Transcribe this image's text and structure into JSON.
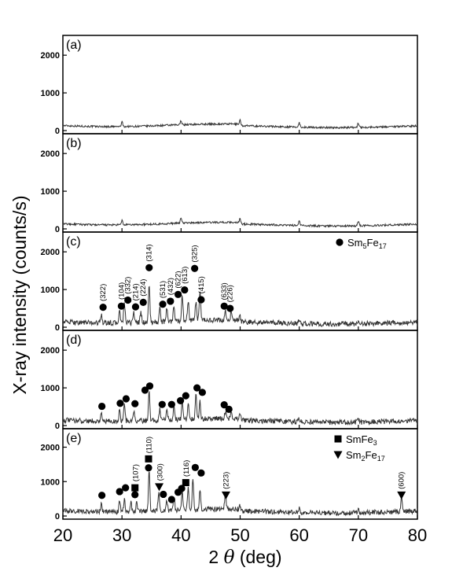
{
  "chart_data": {
    "type": "line",
    "xlabel": "2 θ (deg)",
    "xlabel_theta": "θ",
    "xlabel_prefix": "2 ",
    "xlabel_suffix": " (deg)",
    "ylabel": "X-ray intensity (counts/s)",
    "xlim": [
      20,
      80
    ],
    "xticks": [
      20,
      30,
      40,
      50,
      60,
      70,
      80
    ],
    "ylim": [
      0,
      2400
    ],
    "yticks": [
      0,
      1000,
      2000
    ],
    "panels": [
      {
        "label": "(a)",
        "baseline": 140,
        "peaks": [
          [
            30,
            120
          ],
          [
            40,
            120
          ],
          [
            50,
            120
          ],
          [
            60,
            120
          ],
          [
            70,
            120
          ]
        ],
        "markers": [],
        "labels": []
      },
      {
        "label": "(b)",
        "baseline": 140,
        "peaks": [
          [
            30,
            120
          ],
          [
            40,
            150
          ],
          [
            50,
            120
          ],
          [
            60,
            120
          ],
          [
            70,
            120
          ]
        ],
        "markers": [],
        "labels": []
      },
      {
        "label": "(c)",
        "baseline": 150,
        "peaks": [
          [
            26.5,
            250
          ],
          [
            29.6,
            320
          ],
          [
            30.4,
            550
          ],
          [
            32,
            300
          ],
          [
            33.2,
            280
          ],
          [
            34.6,
            1000
          ],
          [
            36.4,
            350
          ],
          [
            37.6,
            380
          ],
          [
            38.8,
            420
          ],
          [
            40.2,
            700
          ],
          [
            41.2,
            550
          ],
          [
            42.5,
            500
          ],
          [
            43.2,
            780
          ],
          [
            47.5,
            250
          ],
          [
            48.5,
            220
          ],
          [
            50,
            120
          ],
          [
            60,
            100
          ],
          [
            70,
            100
          ]
        ],
        "markers": [
          {
            "shape": "circle",
            "x": 26.8,
            "y": 530
          },
          {
            "shape": "circle",
            "x": 29.9,
            "y": 560
          },
          {
            "shape": "circle",
            "x": 31,
            "y": 720
          },
          {
            "shape": "circle",
            "x": 32.3,
            "y": 540
          },
          {
            "shape": "circle",
            "x": 33.6,
            "y": 660
          },
          {
            "shape": "circle",
            "x": 34.6,
            "y": 1580
          },
          {
            "shape": "circle",
            "x": 36.9,
            "y": 610
          },
          {
            "shape": "circle",
            "x": 38.2,
            "y": 690
          },
          {
            "shape": "circle",
            "x": 39.5,
            "y": 870
          },
          {
            "shape": "circle",
            "x": 40.6,
            "y": 990
          },
          {
            "shape": "circle",
            "x": 42.3,
            "y": 1560
          },
          {
            "shape": "circle",
            "x": 43.4,
            "y": 730
          },
          {
            "shape": "circle",
            "x": 47.3,
            "y": 560
          },
          {
            "shape": "circle",
            "x": 48.3,
            "y": 500
          }
        ],
        "labels": [
          {
            "text": "(322)",
            "x": 26.8,
            "y": 690
          },
          {
            "text": "(104)",
            "x": 29.9,
            "y": 730
          },
          {
            "text": "(332)",
            "x": 31,
            "y": 880
          },
          {
            "text": "(214)",
            "x": 32.3,
            "y": 700
          },
          {
            "text": "(224)",
            "x": 33.6,
            "y": 820
          },
          {
            "text": "(314)",
            "x": 34.6,
            "y": 1740
          },
          {
            "text": "(531)",
            "x": 36.9,
            "y": 770
          },
          {
            "text": "(432)",
            "x": 38.2,
            "y": 850
          },
          {
            "text": "(622)",
            "x": 39.5,
            "y": 1030
          },
          {
            "text": "(613)",
            "x": 40.6,
            "y": 1150
          },
          {
            "text": "(325)",
            "x": 42.3,
            "y": 1720
          },
          {
            "text": "(415)",
            "x": 43.4,
            "y": 890
          },
          {
            "text": "(633)",
            "x": 47.3,
            "y": 720
          },
          {
            "text": "(226)",
            "x": 48.3,
            "y": 660
          }
        ],
        "legend": [
          {
            "shape": "circle",
            "text": "Sm",
            "sub": "5",
            "text2": "Fe",
            "sub2": "17"
          }
        ]
      },
      {
        "label": "(d)",
        "baseline": 150,
        "peaks": [
          [
            26.5,
            220
          ],
          [
            29.6,
            300
          ],
          [
            30.4,
            450
          ],
          [
            32,
            250
          ],
          [
            34.6,
            800
          ],
          [
            36.4,
            300
          ],
          [
            37.6,
            320
          ],
          [
            38.8,
            350
          ],
          [
            40.2,
            500
          ],
          [
            41.2,
            420
          ],
          [
            42.5,
            650
          ],
          [
            43.2,
            450
          ],
          [
            47.5,
            200
          ],
          [
            48.5,
            180
          ],
          [
            50,
            120
          ],
          [
            60,
            100
          ],
          [
            70,
            100
          ]
        ],
        "markers": [
          {
            "shape": "circle",
            "x": 26.6,
            "y": 510
          },
          {
            "shape": "circle",
            "x": 29.7,
            "y": 590
          },
          {
            "shape": "circle",
            "x": 30.7,
            "y": 710
          },
          {
            "shape": "circle",
            "x": 32.2,
            "y": 580
          },
          {
            "shape": "circle",
            "x": 33.9,
            "y": 940
          },
          {
            "shape": "circle",
            "x": 34.7,
            "y": 1050
          },
          {
            "shape": "circle",
            "x": 36.8,
            "y": 560
          },
          {
            "shape": "circle",
            "x": 38.4,
            "y": 560
          },
          {
            "shape": "circle",
            "x": 39.9,
            "y": 660
          },
          {
            "shape": "circle",
            "x": 40.8,
            "y": 790
          },
          {
            "shape": "circle",
            "x": 42.7,
            "y": 1000
          },
          {
            "shape": "circle",
            "x": 43.6,
            "y": 880
          },
          {
            "shape": "circle",
            "x": 47.3,
            "y": 550
          },
          {
            "shape": "circle",
            "x": 48.1,
            "y": 430
          }
        ],
        "labels": []
      },
      {
        "label": "(e)",
        "baseline": 160,
        "peaks": [
          [
            26.5,
            220
          ],
          [
            29.6,
            300
          ],
          [
            30.4,
            350
          ],
          [
            31.5,
            300
          ],
          [
            32.5,
            280
          ],
          [
            34.6,
            1200
          ],
          [
            36.2,
            550
          ],
          [
            37.6,
            300
          ],
          [
            38.8,
            380
          ],
          [
            40.2,
            550
          ],
          [
            41.2,
            600
          ],
          [
            42,
            900
          ],
          [
            43.2,
            550
          ],
          [
            47.5,
            500
          ],
          [
            50,
            130
          ],
          [
            60,
            110
          ],
          [
            70,
            110
          ],
          [
            77.3,
            400
          ]
        ],
        "markers": [
          {
            "shape": "circle",
            "x": 26.6,
            "y": 600
          },
          {
            "shape": "circle",
            "x": 29.6,
            "y": 710
          },
          {
            "shape": "circle",
            "x": 30.6,
            "y": 820
          },
          {
            "shape": "square",
            "x": 32.2,
            "y": 820
          },
          {
            "shape": "circle",
            "x": 32.2,
            "y": 620
          },
          {
            "shape": "square",
            "x": 34.5,
            "y": 1660
          },
          {
            "shape": "circle",
            "x": 34.5,
            "y": 1400
          },
          {
            "shape": "triangle",
            "x": 36.3,
            "y": 850
          },
          {
            "shape": "circle",
            "x": 37,
            "y": 630
          },
          {
            "shape": "circle",
            "x": 38.4,
            "y": 480
          },
          {
            "shape": "circle",
            "x": 39.5,
            "y": 690
          },
          {
            "shape": "circle",
            "x": 40.1,
            "y": 800
          },
          {
            "shape": "square",
            "x": 40.8,
            "y": 970
          },
          {
            "shape": "circle",
            "x": 42.4,
            "y": 1410
          },
          {
            "shape": "circle",
            "x": 43.4,
            "y": 1250
          },
          {
            "shape": "triangle",
            "x": 47.6,
            "y": 610
          },
          {
            "shape": "triangle",
            "x": 77.3,
            "y": 610
          }
        ],
        "labels": [
          {
            "text": "(107)",
            "x": 32.3,
            "y": 1000
          },
          {
            "text": "(110)",
            "x": 34.6,
            "y": 1820
          },
          {
            "text": "(300)",
            "x": 36.4,
            "y": 1020
          },
          {
            "text": "(116)",
            "x": 40.9,
            "y": 1140
          },
          {
            "text": "(223)",
            "x": 47.6,
            "y": 780
          },
          {
            "text": "(600)",
            "x": 77.3,
            "y": 780
          }
        ],
        "legend": [
          {
            "shape": "square",
            "text": "SmFe",
            "sub": "3",
            "text2": "",
            "sub2": ""
          },
          {
            "shape": "triangle",
            "text": "Sm",
            "sub": "2",
            "text2": "Fe",
            "sub2": "17"
          }
        ]
      }
    ]
  }
}
